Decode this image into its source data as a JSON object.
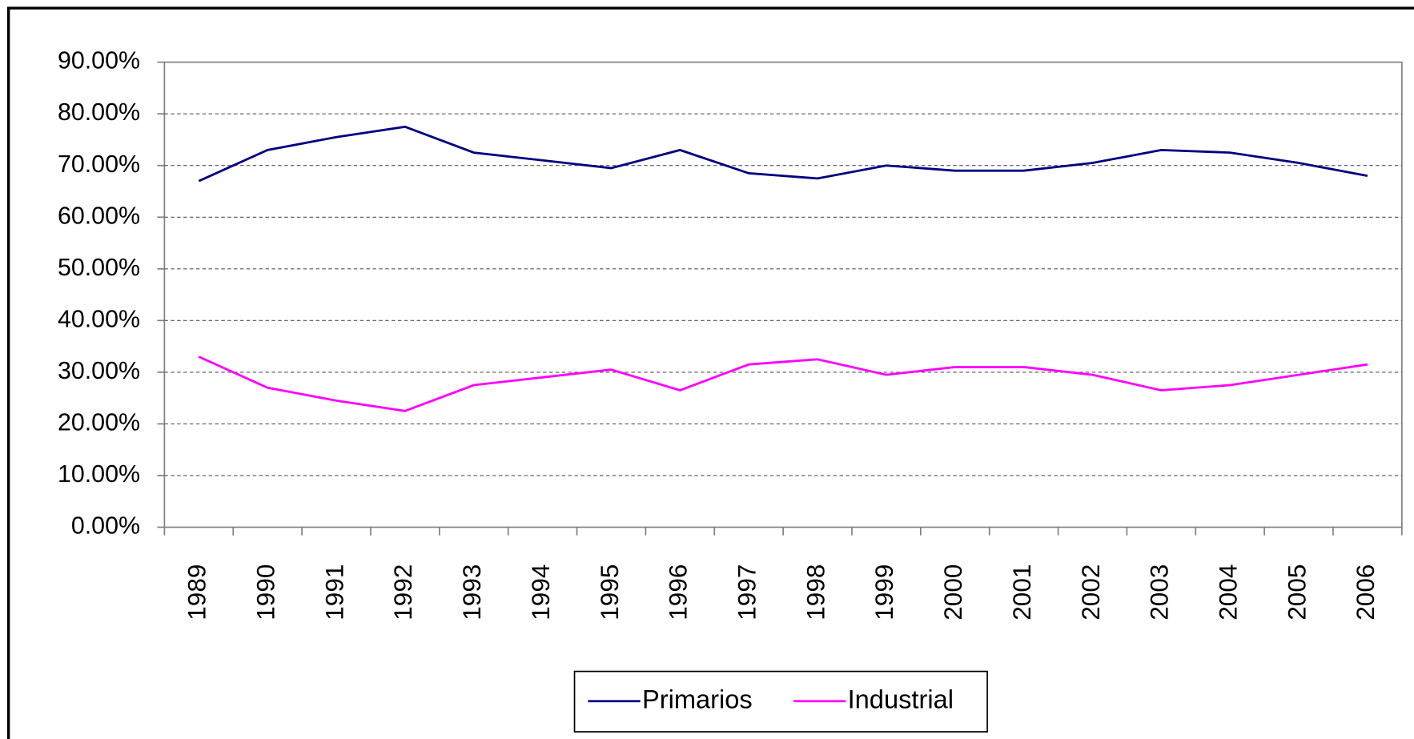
{
  "chart_data": {
    "type": "line",
    "categories": [
      "1989",
      "1990",
      "1991",
      "1992",
      "1993",
      "1994",
      "1995",
      "1996",
      "1997",
      "1998",
      "1999",
      "2000",
      "2001",
      "2002",
      "2003",
      "2004",
      "2005",
      "2006"
    ],
    "series": [
      {
        "name": "Primarios",
        "color": "#000080",
        "values": [
          67,
          73,
          75.5,
          77.5,
          72.5,
          71,
          69.5,
          73,
          68.5,
          67.5,
          70,
          69,
          69,
          70.5,
          73,
          72.5,
          70.5,
          68
        ]
      },
      {
        "name": "Industrial",
        "color": "#ff00ff",
        "values": [
          33,
          27,
          24.5,
          22.5,
          27.5,
          29,
          30.5,
          26.5,
          31.5,
          32.5,
          29.5,
          31,
          31,
          29.5,
          26.5,
          27.5,
          29.5,
          31.5
        ]
      }
    ],
    "ylim": [
      0,
      90
    ],
    "yticks": [
      {
        "value": 0,
        "label": "0.00%"
      },
      {
        "value": 10,
        "label": "10.00%"
      },
      {
        "value": 20,
        "label": "20.00%"
      },
      {
        "value": 30,
        "label": "30.00%"
      },
      {
        "value": 40,
        "label": "40.00%"
      },
      {
        "value": 50,
        "label": "50.00%"
      },
      {
        "value": 60,
        "label": "60.00%"
      },
      {
        "value": 70,
        "label": "70.00%"
      },
      {
        "value": 80,
        "label": "80.00%"
      },
      {
        "value": 90,
        "label": "90.00%"
      }
    ],
    "grid": true,
    "legend": "bottom"
  }
}
